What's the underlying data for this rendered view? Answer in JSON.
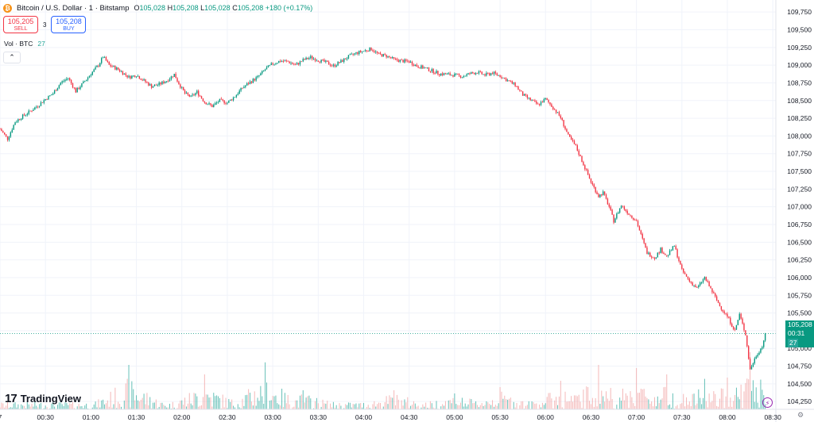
{
  "header": {
    "coin_symbol": "₿",
    "symbol": "Bitcoin / U.S. Dollar · 1 · Bitstamp",
    "open_label": "O",
    "open": "105,028",
    "high_label": "H",
    "high": "105,208",
    "low_label": "L",
    "low": "105,028",
    "close_label": "C",
    "close": "105,208",
    "change": "+180 (+0.17%)"
  },
  "trade": {
    "sell_price": "105,205",
    "sell_label": "SELL",
    "spread": "3",
    "buy_price": "105,208",
    "buy_label": "BUY"
  },
  "volume_legend": {
    "label": "Vol · BTC",
    "value": "27"
  },
  "collapse": {
    "glyph": "⌃"
  },
  "logo": {
    "mark": "17",
    "text": "TradingView"
  },
  "price_badge": {
    "price": "105,208",
    "countdown": "00:31",
    "volume": "27"
  },
  "icons": {
    "lightning": "⚡",
    "settings": "⚙"
  },
  "colors": {
    "up": "#089981",
    "down": "#f23645",
    "vol_up": "#26a69a",
    "vol_down": "#ef9a9a",
    "grid": "#f0f3fa"
  },
  "chart_data": {
    "type": "candlestick",
    "interval": "1 minute",
    "exchange": "Bitstamp",
    "y_ticks": [
      "109,750",
      "109,500",
      "109,250",
      "109,000",
      "108,750",
      "108,500",
      "108,250",
      "108,000",
      "107,750",
      "107,500",
      "107,250",
      "107,000",
      "106,750",
      "106,500",
      "106,250",
      "106,000",
      "105,750",
      "105,500",
      "105,250",
      "105,000",
      "104,750",
      "104,500",
      "104,250"
    ],
    "y_tick_values": [
      109750,
      109500,
      109250,
      109000,
      108750,
      108500,
      108250,
      108000,
      107750,
      107500,
      107250,
      107000,
      106750,
      106500,
      106250,
      106000,
      105750,
      105500,
      105250,
      105000,
      104750,
      104500,
      104250
    ],
    "ylim": [
      104140,
      109920
    ],
    "x_ticks": [
      "7",
      "00:30",
      "01:00",
      "01:30",
      "02:00",
      "02:30",
      "03:00",
      "03:30",
      "04:00",
      "04:30",
      "05:00",
      "05:30",
      "06:00",
      "06:30",
      "07:00",
      "07:30",
      "08:00",
      "08:30"
    ],
    "x_tick_minutes": [
      0,
      30,
      60,
      90,
      120,
      150,
      180,
      210,
      240,
      270,
      300,
      330,
      360,
      390,
      420,
      450,
      480,
      510
    ],
    "close_path": [
      [
        0,
        108100
      ],
      [
        5,
        107960
      ],
      [
        10,
        108200
      ],
      [
        15,
        108280
      ],
      [
        20,
        108350
      ],
      [
        25,
        108430
      ],
      [
        30,
        108520
      ],
      [
        35,
        108600
      ],
      [
        40,
        108750
      ],
      [
        45,
        108820
      ],
      [
        50,
        108630
      ],
      [
        55,
        108750
      ],
      [
        60,
        108880
      ],
      [
        65,
        109000
      ],
      [
        68,
        109120
      ],
      [
        72,
        109000
      ],
      [
        78,
        108940
      ],
      [
        85,
        108830
      ],
      [
        90,
        108860
      ],
      [
        95,
        108780
      ],
      [
        100,
        108700
      ],
      [
        105,
        108730
      ],
      [
        110,
        108780
      ],
      [
        115,
        108870
      ],
      [
        118,
        108740
      ],
      [
        122,
        108600
      ],
      [
        126,
        108550
      ],
      [
        130,
        108620
      ],
      [
        135,
        108480
      ],
      [
        140,
        108420
      ],
      [
        145,
        108500
      ],
      [
        150,
        108470
      ],
      [
        155,
        108560
      ],
      [
        160,
        108680
      ],
      [
        165,
        108760
      ],
      [
        170,
        108830
      ],
      [
        175,
        108940
      ],
      [
        180,
        109020
      ],
      [
        185,
        109060
      ],
      [
        190,
        109050
      ],
      [
        195,
        109000
      ],
      [
        200,
        109070
      ],
      [
        205,
        109110
      ],
      [
        210,
        109070
      ],
      [
        215,
        109040
      ],
      [
        220,
        108990
      ],
      [
        225,
        109050
      ],
      [
        230,
        109120
      ],
      [
        235,
        109170
      ],
      [
        240,
        109200
      ],
      [
        245,
        109230
      ],
      [
        250,
        109150
      ],
      [
        255,
        109130
      ],
      [
        260,
        109080
      ],
      [
        265,
        109060
      ],
      [
        270,
        109050
      ],
      [
        275,
        108990
      ],
      [
        280,
        108960
      ],
      [
        285,
        108920
      ],
      [
        290,
        108880
      ],
      [
        295,
        108870
      ],
      [
        300,
        108860
      ],
      [
        305,
        108840
      ],
      [
        310,
        108880
      ],
      [
        315,
        108900
      ],
      [
        320,
        108860
      ],
      [
        325,
        108890
      ],
      [
        330,
        108850
      ],
      [
        335,
        108780
      ],
      [
        340,
        108720
      ],
      [
        345,
        108580
      ],
      [
        350,
        108510
      ],
      [
        355,
        108440
      ],
      [
        360,
        108520
      ],
      [
        365,
        108400
      ],
      [
        370,
        108260
      ],
      [
        375,
        108000
      ],
      [
        380,
        107850
      ],
      [
        385,
        107600
      ],
      [
        390,
        107350
      ],
      [
        395,
        107150
      ],
      [
        398,
        107200
      ],
      [
        402,
        107000
      ],
      [
        405,
        106800
      ],
      [
        410,
        107020
      ],
      [
        415,
        106900
      ],
      [
        420,
        106800
      ],
      [
        423,
        106600
      ],
      [
        427,
        106350
      ],
      [
        432,
        106280
      ],
      [
        436,
        106400
      ],
      [
        440,
        106300
      ],
      [
        445,
        106450
      ],
      [
        450,
        106100
      ],
      [
        455,
        105950
      ],
      [
        460,
        105850
      ],
      [
        465,
        106000
      ],
      [
        470,
        105800
      ],
      [
        475,
        105600
      ],
      [
        480,
        105450
      ],
      [
        485,
        105250
      ],
      [
        488,
        105480
      ],
      [
        492,
        105200
      ],
      [
        495,
        104700
      ],
      [
        499,
        104900
      ],
      [
        503,
        105028
      ],
      [
        505,
        105208
      ]
    ],
    "volume_max_bars": [
      [
        85,
        0.7
      ],
      [
        135,
        0.55
      ],
      [
        175,
        0.74
      ],
      [
        200,
        0.3
      ],
      [
        260,
        0.3
      ],
      [
        300,
        0.25
      ],
      [
        330,
        0.35
      ],
      [
        370,
        0.45
      ],
      [
        395,
        0.7
      ],
      [
        420,
        0.65
      ],
      [
        440,
        0.55
      ],
      [
        465,
        0.48
      ],
      [
        480,
        0.5
      ],
      [
        495,
        0.9
      ]
    ]
  }
}
